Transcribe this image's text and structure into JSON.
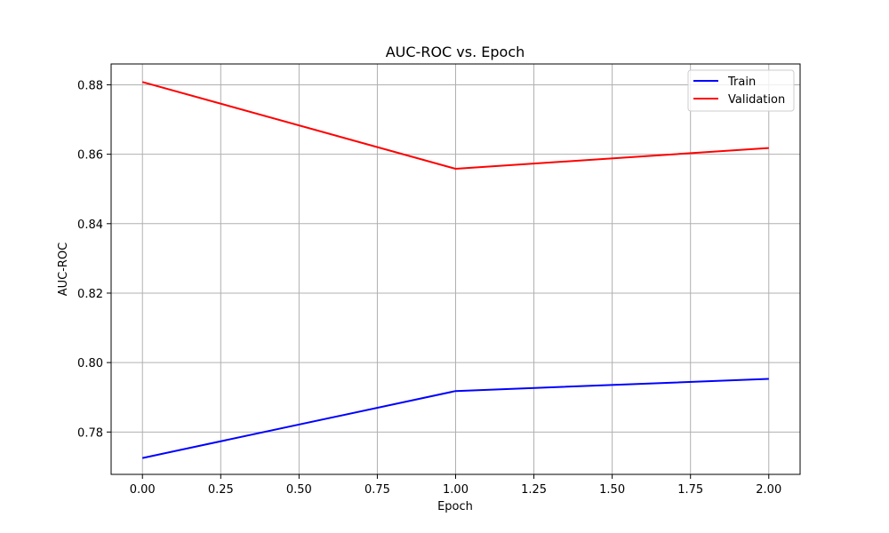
{
  "chart_data": {
    "type": "line",
    "title": "AUC-ROC vs. Epoch",
    "xlabel": "Epoch",
    "ylabel": "AUC-ROC",
    "xlim": [
      -0.1,
      2.1
    ],
    "ylim": [
      0.7678,
      0.886
    ],
    "x_ticks": [
      0.0,
      0.25,
      0.5,
      0.75,
      1.0,
      1.25,
      1.5,
      1.75,
      2.0
    ],
    "x_tick_labels": [
      "0.00",
      "0.25",
      "0.50",
      "0.75",
      "1.00",
      "1.25",
      "1.50",
      "1.75",
      "2.00"
    ],
    "y_ticks": [
      0.78,
      0.8,
      0.82,
      0.84,
      0.86,
      0.88
    ],
    "y_tick_labels": [
      "0.78",
      "0.80",
      "0.82",
      "0.84",
      "0.86",
      "0.88"
    ],
    "grid": true,
    "legend_position": "top-right",
    "x": [
      0,
      1,
      2
    ],
    "series": [
      {
        "name": "Train",
        "color": "#0000ff",
        "values": [
          0.7725,
          0.7918,
          0.7953
        ]
      },
      {
        "name": "Validation",
        "color": "#ff0000",
        "values": [
          0.8808,
          0.8558,
          0.8618
        ]
      }
    ]
  }
}
